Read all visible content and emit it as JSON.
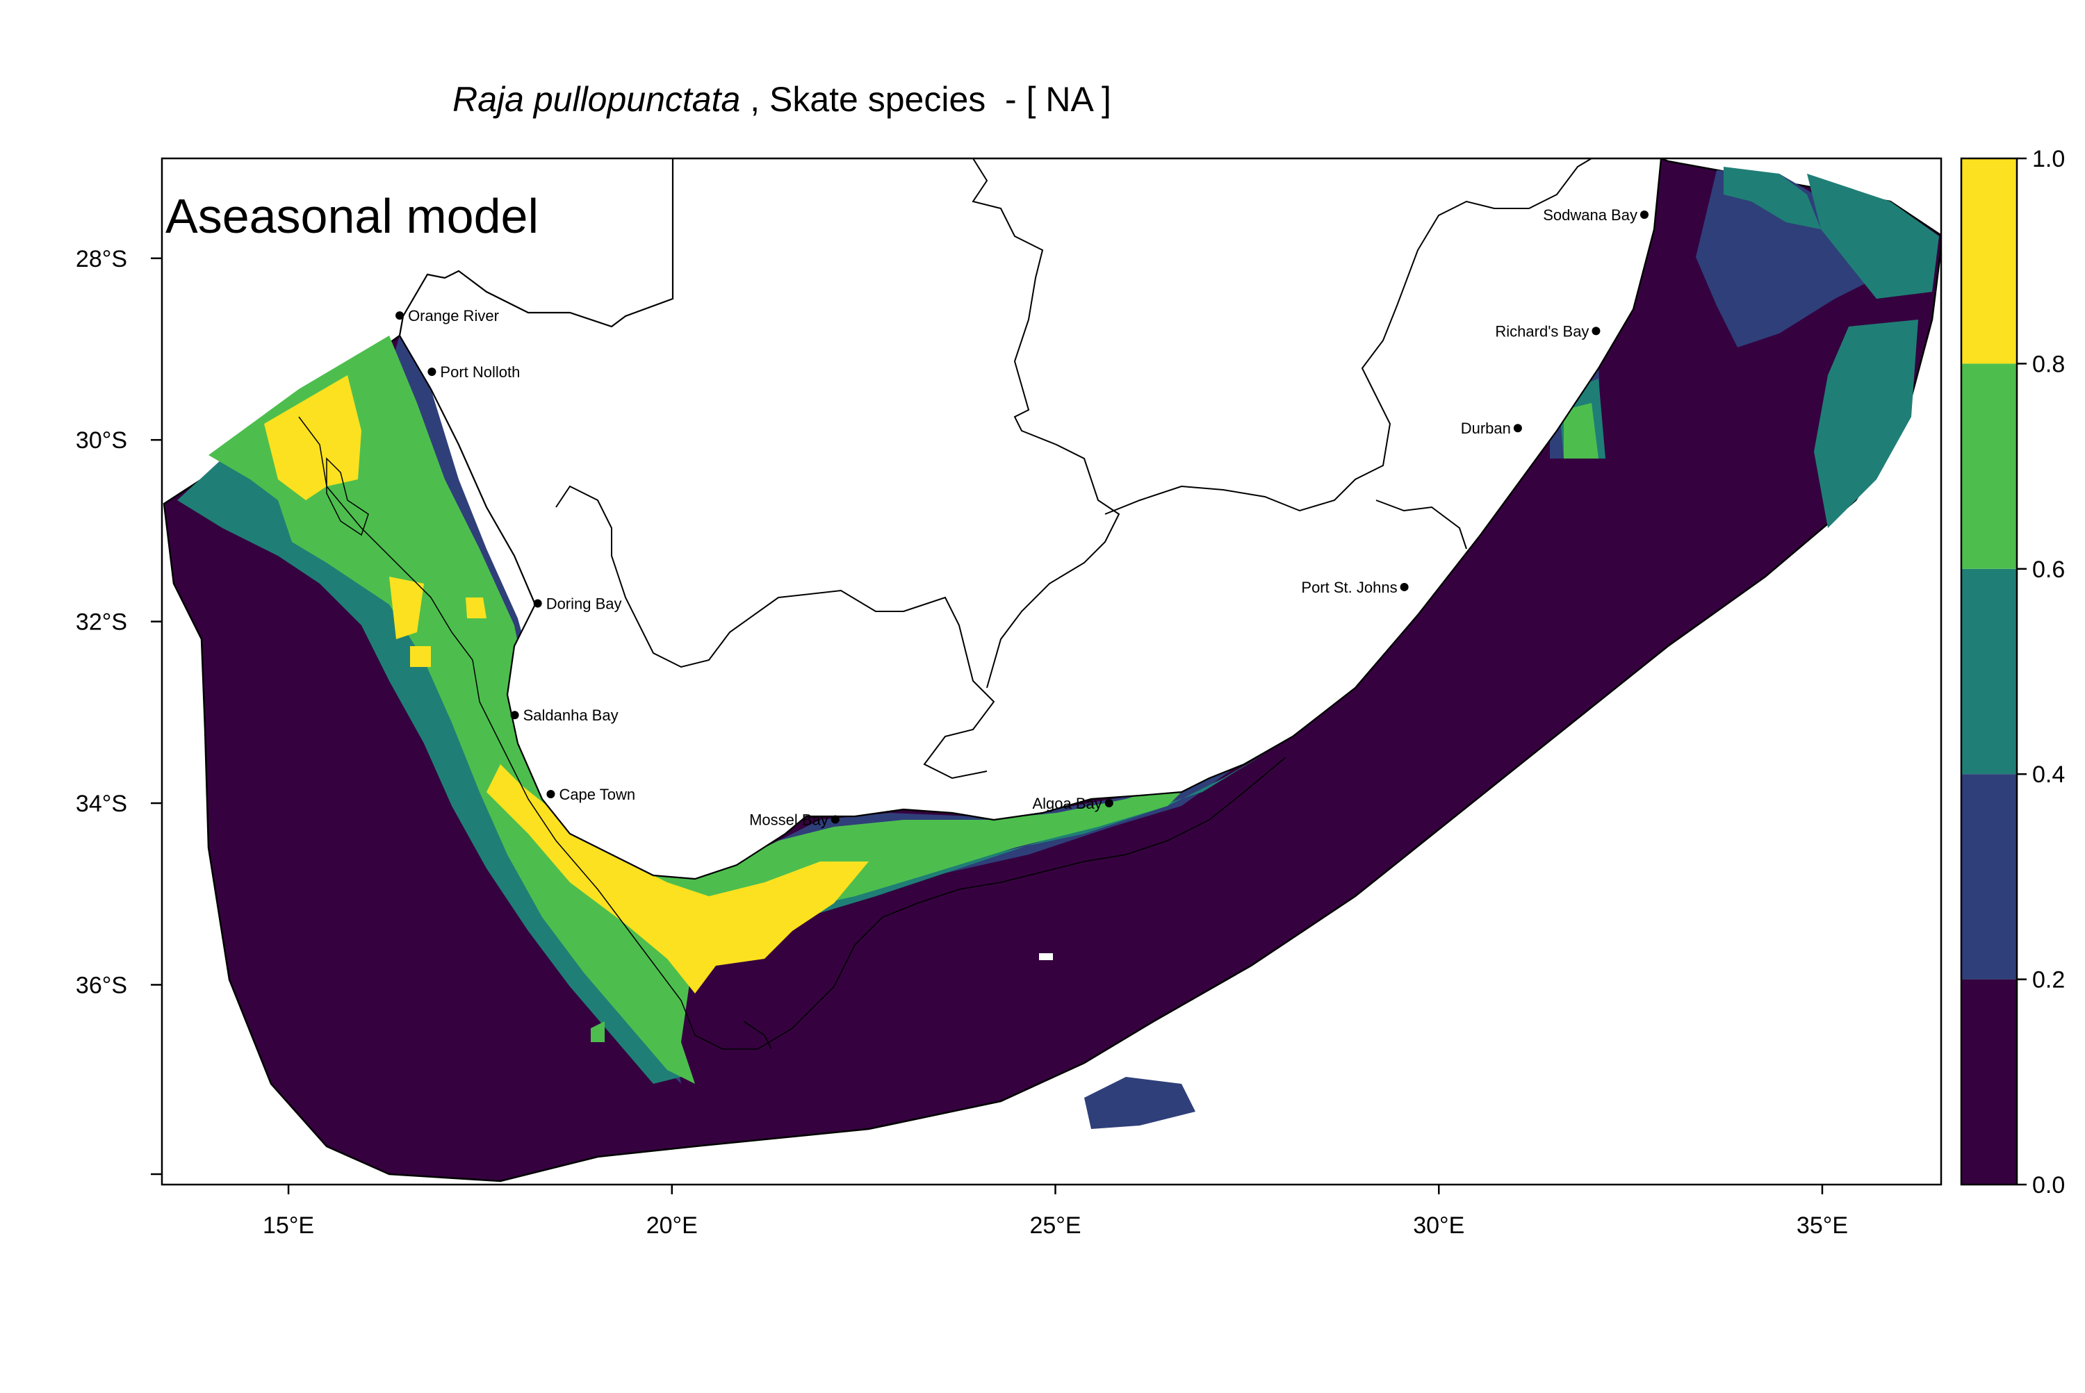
{
  "title": {
    "species": "Raja pullopunctata",
    "rest": " , Skate species  - [ NA ]"
  },
  "panel_label": "Aseasonal model",
  "axes": {
    "x_ticks": [
      {
        "value": 15,
        "label": "15°E"
      },
      {
        "value": 20,
        "label": "20°E"
      },
      {
        "value": 25,
        "label": "25°E"
      },
      {
        "value": 30,
        "label": "30°E"
      },
      {
        "value": 35,
        "label": "35°E"
      }
    ],
    "y_ticks": [
      {
        "value": -28,
        "label": "28°S"
      },
      {
        "value": -30,
        "label": "30°S"
      },
      {
        "value": -32,
        "label": "32°S"
      },
      {
        "value": -34,
        "label": "34°S"
      },
      {
        "value": -36,
        "label": "36°S"
      }
    ],
    "xlim": [
      13.35,
      36.55
    ],
    "ylim": [
      -38.2,
      -26.9
    ]
  },
  "legend": {
    "ticks": [
      "0.0",
      "0.2",
      "0.4",
      "0.6",
      "0.8",
      "1.0"
    ],
    "bins": [
      {
        "range": "0.0-0.2",
        "color": "#35023f"
      },
      {
        "range": "0.2-0.4",
        "color": "#2f3f79"
      },
      {
        "range": "0.4-0.6",
        "color": "#1f7f76"
      },
      {
        "range": "0.6-0.8",
        "color": "#4dbe4e"
      },
      {
        "range": "0.8-1.0",
        "color": "#fbe11f"
      }
    ]
  },
  "places": [
    {
      "name": "Orange River",
      "lon": 16.45,
      "lat": -28.63,
      "anchor": "start"
    },
    {
      "name": "Port Nolloth",
      "lon": 16.87,
      "lat": -29.25,
      "anchor": "start"
    },
    {
      "name": "Doring Bay",
      "lon": 18.25,
      "lat": -31.8,
      "anchor": "start"
    },
    {
      "name": "Saldanha Bay",
      "lon": 17.95,
      "lat": -33.03,
      "anchor": "start"
    },
    {
      "name": "Cape Town",
      "lon": 18.42,
      "lat": -33.9,
      "anchor": "start"
    },
    {
      "name": "Mossel Bay",
      "lon": 22.13,
      "lat": -34.18,
      "anchor": "end"
    },
    {
      "name": "Algoa Bay",
      "lon": 25.7,
      "lat": -34.0,
      "anchor": "end"
    },
    {
      "name": "Port St. Johns",
      "lon": 29.55,
      "lat": -31.62,
      "anchor": "end"
    },
    {
      "name": "Durban",
      "lon": 31.03,
      "lat": -29.87,
      "anchor": "end"
    },
    {
      "name": "Richard's Bay",
      "lon": 32.05,
      "lat": -28.8,
      "anchor": "end"
    },
    {
      "name": "Sodwana Bay",
      "lon": 32.68,
      "lat": -27.52,
      "anchor": "end"
    }
  ]
}
